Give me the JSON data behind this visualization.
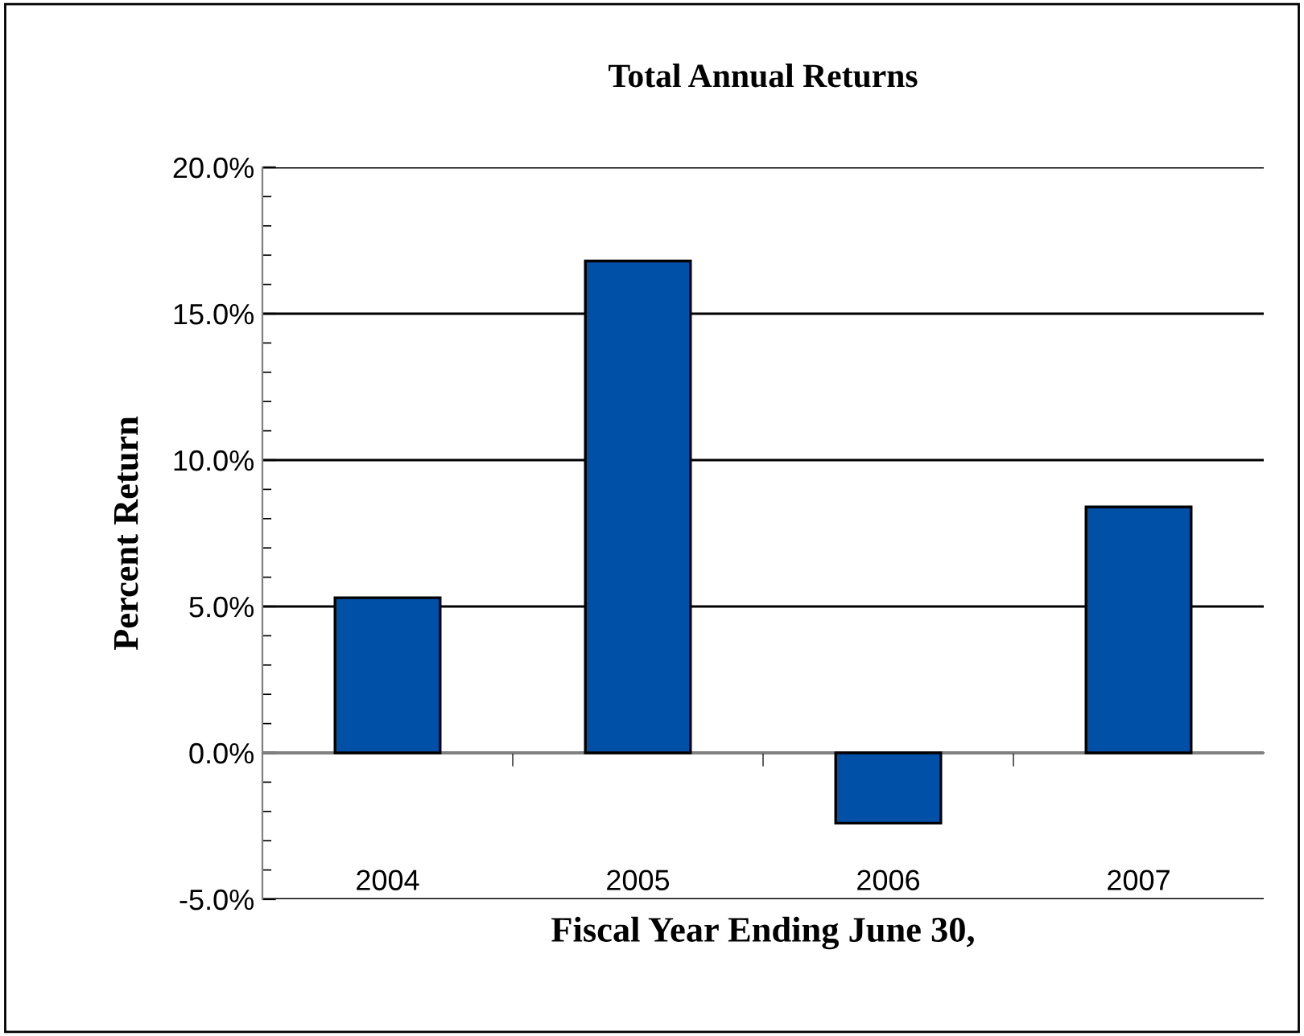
{
  "chart_data": {
    "type": "bar",
    "title": "Total Annual Returns",
    "xlabel": "Fiscal Year Ending June 30,",
    "ylabel": "Percent Return",
    "categories": [
      "2004",
      "2005",
      "2006",
      "2007"
    ],
    "values": [
      5.3,
      16.8,
      -2.4,
      8.4
    ],
    "color": "#0050a8",
    "ylim": [
      -5,
      20
    ],
    "yticks": [
      {
        "value": -5,
        "label": "-5.0%"
      },
      {
        "value": 0,
        "label": "0.0%"
      },
      {
        "value": 5,
        "label": "5.0%"
      },
      {
        "value": 10,
        "label": "10.0%"
      },
      {
        "value": 15,
        "label": "15.0%"
      },
      {
        "value": 20,
        "label": "20.0%"
      }
    ],
    "grid": "y"
  }
}
